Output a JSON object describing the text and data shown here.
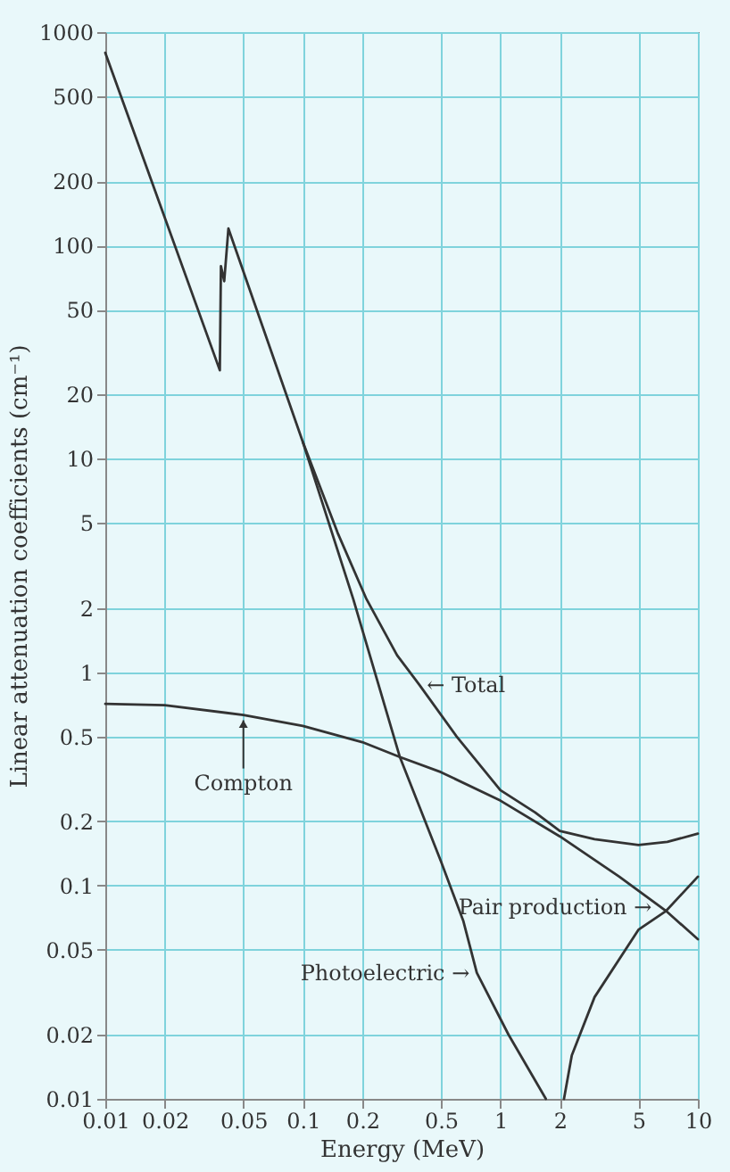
{
  "chart_data": {
    "type": "line",
    "xlabel": "Energy (MeV)",
    "ylabel": "Linear attenuation coefficients (cm⁻¹)",
    "log": "xy",
    "grid": true,
    "legend": false,
    "line_style": "solid",
    "marker": "none",
    "xlim": [
      0.01,
      10
    ],
    "xticks": [
      0.01,
      0.02,
      0.05,
      0.1,
      0.2,
      0.5,
      1,
      2,
      5,
      10
    ],
    "ylim": [
      0.01,
      1000
    ],
    "yticks": [
      0.01,
      0.02,
      0.05,
      0.1,
      0.2,
      0.5,
      1,
      2,
      5,
      10,
      20,
      50,
      100,
      200,
      500,
      1000
    ],
    "series": [
      {
        "color": "#333333",
        "x": [
          0.01,
          0.038,
          0.0385,
          0.04,
          0.042,
          0.1,
          0.18,
          0.31,
          0.5,
          0.65,
          0.76,
          1.1,
          1.7
        ],
        "values": [
          800,
          26,
          80,
          68,
          120,
          12,
          2.2,
          0.4,
          0.13,
          0.068,
          0.039,
          0.02,
          0.01
        ]
      },
      {
        "color": "#333333",
        "x": [
          0.1,
          0.15,
          0.21,
          0.3,
          0.39,
          0.6,
          1,
          1.5,
          2,
          3,
          5,
          7,
          10
        ],
        "values": [
          12,
          4.5,
          2.2,
          1.2,
          0.87,
          0.5,
          0.28,
          0.22,
          0.18,
          0.165,
          0.155,
          0.16,
          0.175
        ]
      },
      {
        "color": "#333333",
        "x": [
          0.01,
          0.02,
          0.05,
          0.1,
          0.2,
          0.31,
          0.5,
          1,
          2,
          4,
          6.9,
          10
        ],
        "values": [
          0.71,
          0.7,
          0.63,
          0.56,
          0.47,
          0.4,
          0.34,
          0.25,
          0.17,
          0.11,
          0.076,
          0.056
        ]
      },
      {
        "color": "#333333",
        "x": [
          2.1,
          2.3,
          3,
          5,
          6.9,
          10
        ],
        "values": [
          0.01,
          0.016,
          0.03,
          0.062,
          0.076,
          0.11
        ]
      }
    ],
    "annotations": [
      {
        "text": "← Total",
        "x": 0.39,
        "y": 0.87
      },
      {
        "text": "Compton",
        "x": 0.05,
        "y": 0.63
      },
      {
        "text": "Pair production →",
        "x": 6.9,
        "y": 0.076
      },
      {
        "text": "Photoelectric →",
        "x": 0.76,
        "y": 0.039
      }
    ]
  }
}
